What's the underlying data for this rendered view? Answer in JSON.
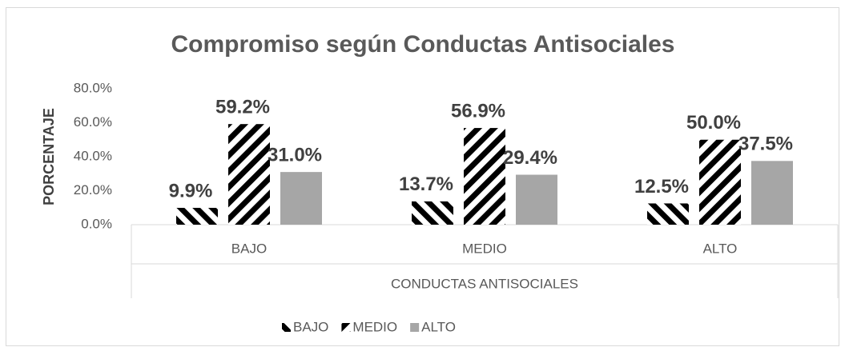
{
  "chart_data": {
    "type": "bar",
    "title": "Compromiso según Conductas Antisociales",
    "ylabel": "PORCENTAJE",
    "xlabel": "CONDUCTAS ANTISOCIALES",
    "categories": [
      "BAJO",
      "MEDIO",
      "ALTO"
    ],
    "series": [
      {
        "name": "BAJO",
        "color": "#000000",
        "pattern": "downward-diagonal",
        "values": [
          9.9,
          13.7,
          12.5
        ],
        "value_labels": [
          "9.9%",
          "13.7%",
          "12.5%"
        ]
      },
      {
        "name": "MEDIO",
        "color": "#000000",
        "pattern": "upward-diagonal",
        "values": [
          59.2,
          56.9,
          50.0
        ],
        "value_labels": [
          "59.2%",
          "56.9%",
          "50.0%"
        ]
      },
      {
        "name": "ALTO",
        "color": "#a6a6a6",
        "pattern": "solid",
        "values": [
          31.0,
          29.4,
          37.5
        ],
        "value_labels": [
          "31.0%",
          "29.4%",
          "37.5%"
        ]
      }
    ],
    "ylim": [
      0,
      80
    ],
    "yticks": [
      {
        "value": 0,
        "label": "0.0%"
      },
      {
        "value": 20,
        "label": "20.0%"
      },
      {
        "value": 40,
        "label": "40.0%"
      },
      {
        "value": 60,
        "label": "60.0%"
      },
      {
        "value": 80,
        "label": "80.0%"
      }
    ],
    "grid": false,
    "legend": "bottom"
  }
}
